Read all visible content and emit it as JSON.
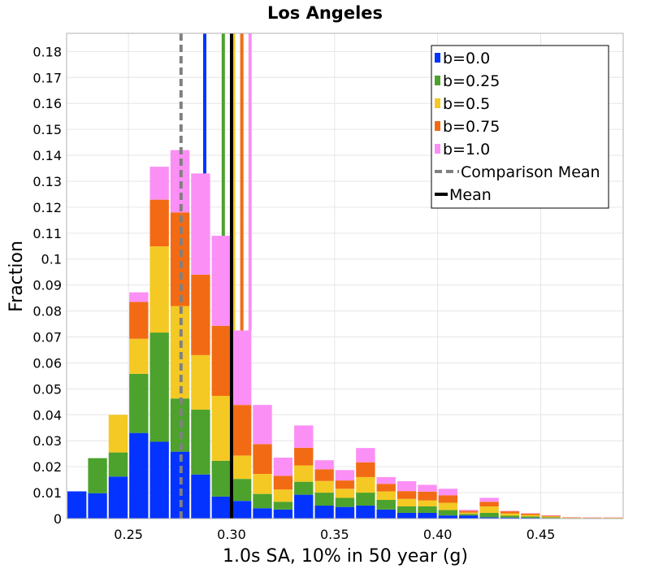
{
  "chart_data": {
    "type": "bar",
    "stacked": true,
    "title": "Los Angeles",
    "xlabel": "1.0s SA, 10% in 50 year (g)",
    "ylabel": "Fraction",
    "xlim": [
      0.22,
      0.49
    ],
    "ylim": [
      0,
      0.187
    ],
    "grid": true,
    "legend_position": "top-right",
    "bin_width": 0.01,
    "bin_centers": [
      0.225,
      0.235,
      0.245,
      0.255,
      0.265,
      0.275,
      0.285,
      0.295,
      0.305,
      0.315,
      0.325,
      0.335,
      0.345,
      0.355,
      0.365,
      0.375,
      0.385,
      0.395,
      0.405,
      0.415,
      0.425,
      0.435,
      0.445,
      0.455,
      0.465,
      0.475,
      0.485
    ],
    "series": [
      {
        "name": "b=0.0",
        "color": "#0433FF",
        "values": [
          0.0105,
          0.0098,
          0.0162,
          0.033,
          0.0296,
          0.0258,
          0.017,
          0.0085,
          0.0068,
          0.004,
          0.0035,
          0.0092,
          0.005,
          0.0045,
          0.005,
          0.0035,
          0.0022,
          0.0022,
          0.0012,
          0.0012,
          0.0005,
          0.0004,
          0.0003,
          0.0002,
          0.0002,
          0.0002,
          0.0001
        ]
      },
      {
        "name": "b=0.25",
        "color": "#4CA22C",
        "values": [
          0,
          0.0135,
          0.0093,
          0.0228,
          0.0421,
          0.0205,
          0.025,
          0.0138,
          0.0085,
          0.0055,
          0.003,
          0.005,
          0.005,
          0.0035,
          0.005,
          0.0037,
          0.0025,
          0.0025,
          0.0021,
          0.0006,
          0.0017,
          0.0007,
          0.0005,
          0.0003,
          0,
          0,
          0
        ]
      },
      {
        "name": "b=0.5",
        "color": "#F4C923",
        "values": [
          0,
          0,
          0.0145,
          0.0135,
          0.0332,
          0.0356,
          0.021,
          0.025,
          0.009,
          0.0077,
          0.0047,
          0.0063,
          0.0045,
          0.0035,
          0.006,
          0.0033,
          0.0029,
          0.0023,
          0.0028,
          0.0005,
          0.0025,
          0.0009,
          0.0006,
          0.0003,
          0.0002,
          0.0001,
          0.0002
        ]
      },
      {
        "name": "b=0.75",
        "color": "#F26B14",
        "values": [
          0,
          0,
          0,
          0.0142,
          0.018,
          0.0361,
          0.031,
          0.027,
          0.0195,
          0.0115,
          0.0053,
          0.0068,
          0.0045,
          0.0032,
          0.0057,
          0.0029,
          0.003,
          0.0034,
          0.0029,
          0.0007,
          0.0018,
          0.0008,
          0.0005,
          0.0003,
          0.0001,
          0.0001,
          0.0001
        ]
      },
      {
        "name": "b=1.0",
        "color": "#FB8FF5",
        "values": [
          0,
          0,
          0,
          0.0037,
          0.0127,
          0.024,
          0.039,
          0.0347,
          0.0287,
          0.0151,
          0.007,
          0.0086,
          0.0035,
          0.004,
          0.0055,
          0.0026,
          0.0038,
          0.0026,
          0.0025,
          0.0004,
          0.0015,
          0.0002,
          0.0002,
          0.0002,
          0.0001,
          0.0001,
          0.0001
        ]
      }
    ],
    "reference_lines": [
      {
        "name": "b=0.0 mean",
        "x": 0.287,
        "color": "#0433FF",
        "style": "solid"
      },
      {
        "name": "b=0.25 mean",
        "x": 0.296,
        "color": "#4CA22C",
        "style": "solid"
      },
      {
        "name": "b=0.5 mean",
        "x": 0.301,
        "color": "#F4C923",
        "style": "solid"
      },
      {
        "name": "b=0.75 mean",
        "x": 0.305,
        "color": "#F26B14",
        "style": "solid"
      },
      {
        "name": "b=1.0 mean",
        "x": 0.309,
        "color": "#FB8FF5",
        "style": "solid"
      }
    ],
    "comparison_mean_x": 0.2755,
    "mean_x": 0.3,
    "legend": [
      {
        "label": "b=0.0",
        "color": "#0433FF",
        "kind": "box"
      },
      {
        "label": "b=0.25",
        "color": "#4CA22C",
        "kind": "box"
      },
      {
        "label": "b=0.5",
        "color": "#F4C923",
        "kind": "box"
      },
      {
        "label": "b=0.75",
        "color": "#F26B14",
        "kind": "box"
      },
      {
        "label": "b=1.0",
        "color": "#FB8FF5",
        "kind": "box"
      },
      {
        "label": "Comparison Mean",
        "color": "#808080",
        "kind": "dash"
      },
      {
        "label": "Mean",
        "color": "#000000",
        "kind": "line"
      }
    ],
    "x_ticks": [
      "0.25",
      "0.30",
      "0.35",
      "0.40",
      "0.45"
    ],
    "x_tick_values": [
      0.25,
      0.3,
      0.35,
      0.4,
      0.45
    ],
    "y_ticks": [
      "0",
      "0.01",
      "0.02",
      "0.03",
      "0.04",
      "0.05",
      "0.06",
      "0.07",
      "0.08",
      "0.09",
      "0.1",
      "0.11",
      "0.12",
      "0.13",
      "0.14",
      "0.15",
      "0.16",
      "0.17",
      "0.18"
    ],
    "y_tick_values": [
      0,
      0.01,
      0.02,
      0.03,
      0.04,
      0.05,
      0.06,
      0.07,
      0.08,
      0.09,
      0.1,
      0.11,
      0.12,
      0.13,
      0.14,
      0.15,
      0.16,
      0.17,
      0.18
    ]
  }
}
